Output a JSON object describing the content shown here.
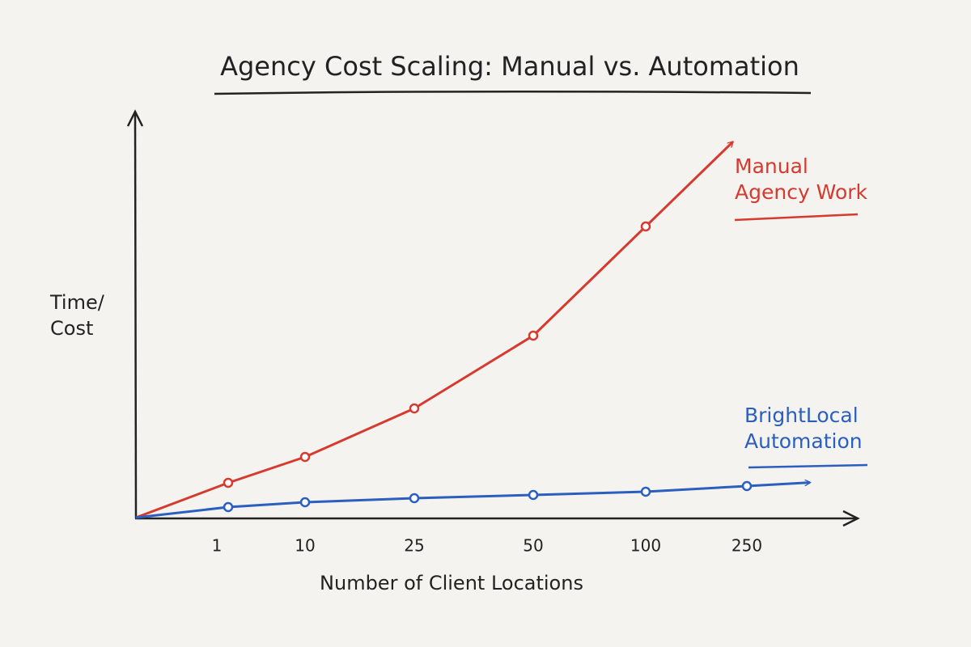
{
  "chart_data": {
    "type": "line",
    "title": "Agency Cost Scaling: Manual vs. Automation",
    "x_label": "Number of Client Locations",
    "y_label": "Time/ Cost",
    "categories": [
      "1",
      "10",
      "25",
      "50",
      "100",
      "250"
    ],
    "ylim": [
      0,
      100
    ],
    "series": [
      {
        "name": "Manual Agency Work",
        "color": "#d63a2f",
        "values": [
          8.6,
          15,
          27,
          45,
          72,
          null
        ]
      },
      {
        "name": "BrightLocal Automation",
        "color": "#2b5fbf",
        "values": [
          2.6,
          3.8,
          4.8,
          5.6,
          6.4,
          7.8
        ]
      }
    ]
  }
}
